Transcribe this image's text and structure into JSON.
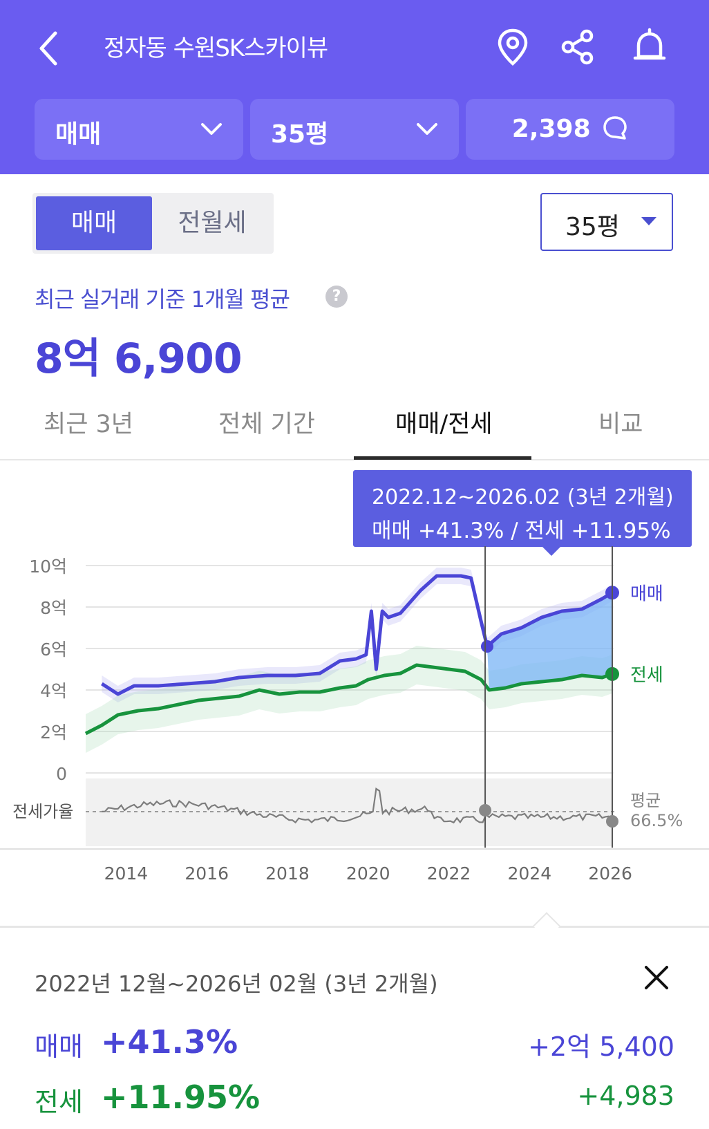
{
  "header": {
    "title": "정자동 수원SK스카이뷰",
    "trade_type": "매매",
    "size": "35평",
    "comment_count": "2,398"
  },
  "segment": {
    "sale_label": "매매",
    "rent_label": "전월세"
  },
  "size_select": {
    "value": "35평"
  },
  "average": {
    "label": "최근 실거래 기준 1개월 평균",
    "help": "?",
    "price": "8억 6,900"
  },
  "tabs": [
    {
      "label": "최근 3년"
    },
    {
      "label": "전체 기간"
    },
    {
      "label": "매매/전세"
    },
    {
      "label": "비교"
    }
  ],
  "tooltip": {
    "range": "2022.12~2026.02 (3년 2개월)",
    "change": "매매 +41.3%  /  전세 +11.95%"
  },
  "chart_data": {
    "type": "line",
    "x_ticks": [
      "2014",
      "2016",
      "2018",
      "2020",
      "2022",
      "2024",
      "2026"
    ],
    "y_ticks": [
      "10억",
      "8억",
      "6억",
      "4억",
      "2억",
      "0"
    ],
    "ylim": [
      0,
      10
    ],
    "y_unit": "억",
    "series": [
      {
        "name": "매매",
        "color": "#4a45d6",
        "x": [
          2013.4,
          2013.8,
          2014.2,
          2014.8,
          2015.5,
          2016.2,
          2016.8,
          2017.5,
          2018.2,
          2018.8,
          2019.3,
          2019.7,
          2019.95,
          2020.08,
          2020.2,
          2020.35,
          2020.5,
          2020.8,
          2021.3,
          2021.7,
          2022.1,
          2022.3,
          2022.55,
          2022.8,
          2022.95,
          2023.3,
          2023.8,
          2024.3,
          2024.8,
          2025.3,
          2025.8,
          2026.05
        ],
        "values": [
          4.3,
          3.8,
          4.2,
          4.2,
          4.3,
          4.4,
          4.6,
          4.7,
          4.7,
          4.8,
          5.4,
          5.5,
          5.7,
          7.8,
          5.0,
          7.8,
          7.5,
          7.7,
          8.8,
          9.5,
          9.5,
          9.5,
          9.4,
          7.3,
          6.1,
          6.7,
          7.0,
          7.5,
          7.8,
          7.9,
          8.4,
          8.69
        ]
      },
      {
        "name": "전세",
        "color": "#17933d",
        "x": [
          2013.0,
          2013.4,
          2013.8,
          2014.3,
          2014.8,
          2015.3,
          2015.8,
          2016.3,
          2016.8,
          2017.3,
          2017.8,
          2018.3,
          2018.8,
          2019.3,
          2019.7,
          2020.0,
          2020.4,
          2020.8,
          2021.2,
          2021.6,
          2022.0,
          2022.4,
          2022.8,
          2023.0,
          2023.4,
          2023.8,
          2024.3,
          2024.8,
          2025.3,
          2025.8,
          2026.05
        ],
        "values": [
          1.9,
          2.3,
          2.8,
          3.0,
          3.1,
          3.3,
          3.5,
          3.6,
          3.7,
          4.0,
          3.8,
          3.9,
          3.9,
          4.1,
          4.2,
          4.5,
          4.7,
          4.8,
          5.2,
          5.1,
          5.0,
          4.9,
          4.5,
          4.0,
          4.1,
          4.3,
          4.4,
          4.5,
          4.7,
          4.6,
          4.77
        ]
      }
    ],
    "ratio": {
      "label": "전세가율",
      "avg_label": "평균",
      "avg_value": "66.5%"
    },
    "selection": {
      "start": 2022.9,
      "end": 2026.05
    },
    "series_labels": {
      "sale": "매매",
      "rent": "전세"
    }
  },
  "summary": {
    "period": "2022년 12월~2026년 02월 (3년 2개월)",
    "sale": {
      "label": "매매",
      "pct": "+41.3%",
      "amount": "+2억 5,400"
    },
    "rent": {
      "label": "전세",
      "pct": "+11.95%",
      "amount": "+4,983"
    }
  }
}
